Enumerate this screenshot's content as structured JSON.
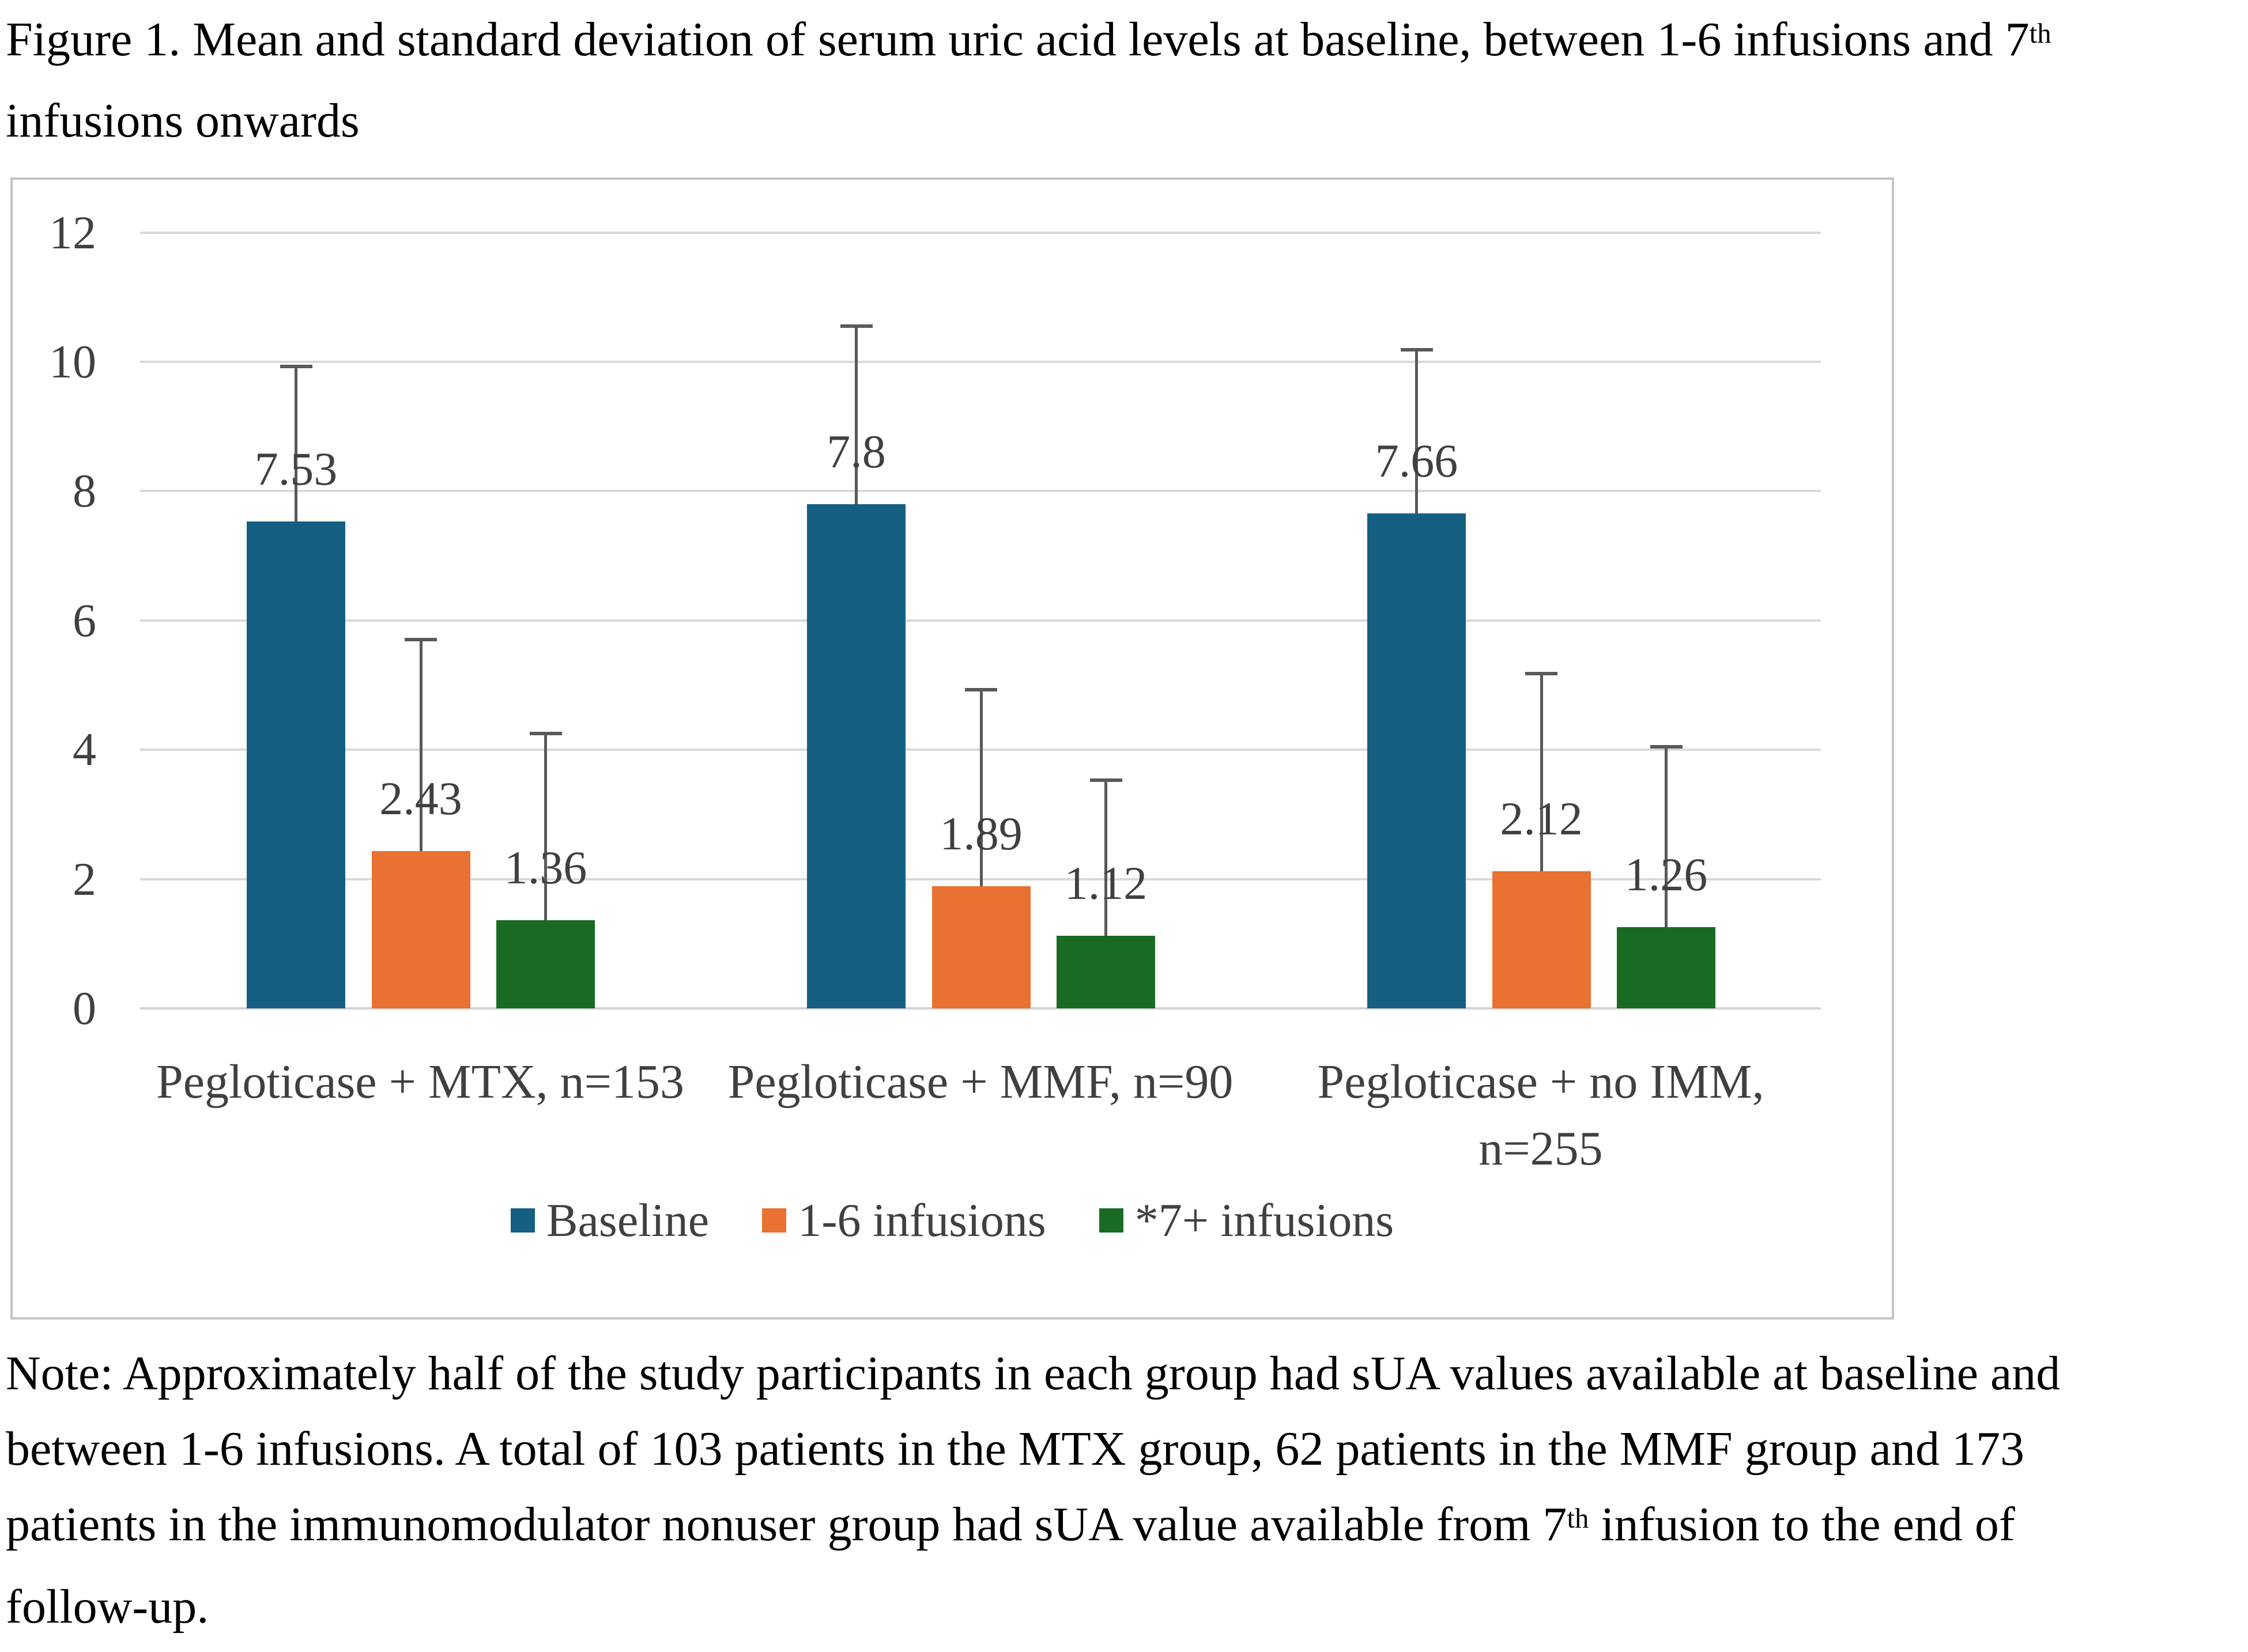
{
  "title": {
    "line1_text": "Figure 1. Mean and standard deviation of serum uric acid levels at baseline, between 1-6 infusions and 7",
    "line1_sup": "th",
    "line2": "infusions onwards"
  },
  "chart_data": {
    "type": "bar",
    "title": "",
    "xlabel": "",
    "ylabel": "",
    "ylim": [
      0,
      12
    ],
    "y_ticks": [
      0,
      2,
      4,
      6,
      8,
      10,
      12
    ],
    "grid": true,
    "legend_position": "bottom",
    "categories": [
      "Pegloticase + MTX, n=153",
      "Pegloticase + MMF, n=90",
      "Pegloticase + no IMM, n=255"
    ],
    "series": [
      {
        "name": "Baseline",
        "color": "#156082",
        "values": [
          7.53,
          7.8,
          7.66
        ],
        "value_labels": [
          "7.53",
          "7.8",
          "7.66"
        ],
        "error_bar_tops": [
          9.93,
          10.55,
          10.19
        ]
      },
      {
        "name": "1-6 infusions",
        "color": "#E97132",
        "values": [
          2.43,
          1.89,
          2.12
        ],
        "value_labels": [
          "2.43",
          "1.89",
          "2.12"
        ],
        "error_bar_tops": [
          5.7,
          4.93,
          5.18
        ]
      },
      {
        "name": "*7+ infusions",
        "color": "#196B24",
        "values": [
          1.36,
          1.12,
          1.26
        ],
        "value_labels": [
          "1.36",
          "1.12",
          "1.26"
        ],
        "error_bar_tops": [
          4.25,
          3.53,
          4.05
        ]
      }
    ]
  },
  "colors": {
    "gridline": "#d9d9d9",
    "axis_line": "#d2d2d2",
    "chart_border": "#c4c4c4",
    "error_bar": "#595959",
    "chart_text": "#404040"
  },
  "note": {
    "line1": "Note: Approximately half of the study participants in each group had sUA values available at baseline and",
    "line2": "between 1-6 infusions. A total of 103 patients in the MTX group, 62 patients in the MMF group and 173",
    "line3_before": "patients in the immunomodulator nonuser group had sUA value available from 7",
    "line3_sup": "th",
    "line3_after": " infusion to the end of",
    "line4": "follow-up."
  }
}
